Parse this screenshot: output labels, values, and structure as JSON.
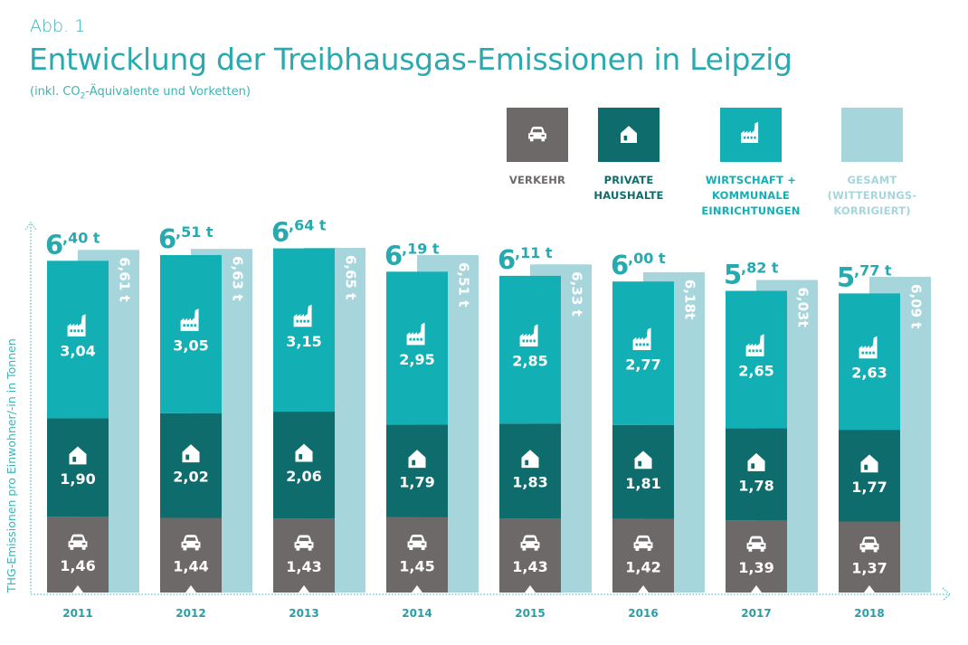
{
  "header": {
    "figure_label": "Abb. 1",
    "title": "Entwicklung der Treibhausgas-Emissionen in Leipzig",
    "subtitle_pre": "(inkl. CO",
    "subtitle_sub": "2",
    "subtitle_post": "-Äquivalente und Vorketten)"
  },
  "legend": [
    {
      "key": "verkehr",
      "label": "VERKEHR",
      "icon": "car-icon",
      "color": "#6e6969",
      "text_color": "#6e6969"
    },
    {
      "key": "haushalte",
      "label": "PRIVATE\nHAUSHALTE",
      "icon": "house-icon",
      "color": "#0e6c6c",
      "text_color": "#0e6c6c"
    },
    {
      "key": "wirtschaft",
      "label": "WIRTSCHAFT +\nKOMMUNALE\nEINRICHTUNGEN",
      "icon": "factory-icon",
      "color": "#12afb4",
      "text_color": "#12afb4"
    },
    {
      "key": "gesamt",
      "label": "GESAMT\n(WITTERUNGS-\nKORRIGIERT)",
      "icon": "",
      "color": "#a6d6dc",
      "text_color": "#a6d6dc"
    }
  ],
  "chart_data": {
    "type": "bar",
    "stacked": true,
    "title": "Entwicklung der Treibhausgas-Emissionen in Leipzig",
    "subtitle": "(inkl. CO2-Äquivalente und Vorketten)",
    "xlabel": "",
    "ylabel": "THG-Emissionen pro Einwohner/-in in Tonnen",
    "ylim": [
      0,
      6.7
    ],
    "grid": false,
    "legend_position": "top-right",
    "categories": [
      "2011",
      "2012",
      "2013",
      "2014",
      "2015",
      "2016",
      "2017",
      "2018"
    ],
    "series": [
      {
        "name": "Verkehr",
        "key": "verkehr",
        "values": [
          1.46,
          1.44,
          1.43,
          1.45,
          1.43,
          1.42,
          1.39,
          1.37
        ],
        "labels": [
          "1,46",
          "1,44",
          "1,43",
          "1,45",
          "1,43",
          "1,42",
          "1,39",
          "1,37"
        ]
      },
      {
        "name": "Private Haushalte",
        "key": "haushalte",
        "values": [
          1.9,
          2.02,
          2.06,
          1.79,
          1.83,
          1.81,
          1.78,
          1.77
        ],
        "labels": [
          "1,90",
          "2,02",
          "2,06",
          "1,79",
          "1,83",
          "1,81",
          "1,78",
          "1,77"
        ]
      },
      {
        "name": "Wirtschaft + Kommunale Einrichtungen",
        "key": "wirtschaft",
        "values": [
          3.04,
          3.05,
          3.15,
          2.95,
          2.85,
          2.77,
          2.65,
          2.63
        ],
        "labels": [
          "3,04",
          "3,05",
          "3,15",
          "2,95",
          "2,85",
          "2,77",
          "2,65",
          "2,63"
        ]
      }
    ],
    "totals": {
      "values": [
        6.4,
        6.51,
        6.64,
        6.19,
        6.11,
        6.0,
        5.82,
        5.77
      ],
      "int_labels": [
        "6",
        "6",
        "6",
        "6",
        "6",
        "6",
        "5",
        "5"
      ],
      "dec_labels": [
        ",40 t",
        ",51 t",
        ",64 t",
        ",19 t",
        ",11 t",
        ",00 t",
        ",82 t",
        ",77 t"
      ]
    },
    "gesamt_witterungskorrigiert": {
      "name": "Gesamt (witterungskorrigiert)",
      "values": [
        6.61,
        6.63,
        6.65,
        6.51,
        6.33,
        6.18,
        6.03,
        6.09
      ],
      "labels": [
        "6,61 t",
        "6,63 t",
        "6,65 t",
        "6,51 t",
        "6,33 t",
        "6,18t",
        "6,03t",
        "6,09 t"
      ]
    }
  }
}
